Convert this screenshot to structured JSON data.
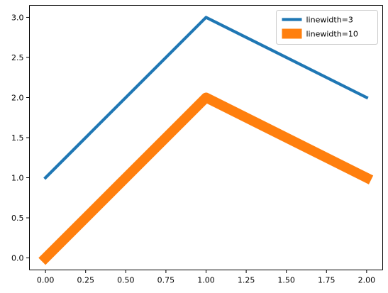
{
  "chart_data": {
    "type": "line",
    "title": "",
    "xlabel": "",
    "ylabel": "",
    "xlim": [
      -0.1,
      2.1
    ],
    "ylim": [
      -0.15,
      3.15
    ],
    "xticks": [
      0.0,
      0.25,
      0.5,
      0.75,
      1.0,
      1.25,
      1.5,
      1.75,
      2.0
    ],
    "xtick_labels": [
      "0.00",
      "0.25",
      "0.50",
      "0.75",
      "1.00",
      "1.25",
      "1.50",
      "1.75",
      "2.00"
    ],
    "yticks": [
      0.0,
      0.5,
      1.0,
      1.5,
      2.0,
      2.5,
      3.0
    ],
    "ytick_labels": [
      "0.0",
      "0.5",
      "1.0",
      "1.5",
      "2.0",
      "2.5",
      "3.0"
    ],
    "grid": false,
    "legend_position": "top-right",
    "series": [
      {
        "name": "linewidth=3",
        "x": [
          0,
          1,
          2
        ],
        "y": [
          1,
          3,
          2
        ],
        "color": "#1f77b4",
        "linewidth": 3
      },
      {
        "name": "linewidth=10",
        "x": [
          0,
          1,
          2
        ],
        "y": [
          0,
          2,
          1
        ],
        "color": "#ff7f0e",
        "linewidth": 10
      }
    ]
  }
}
